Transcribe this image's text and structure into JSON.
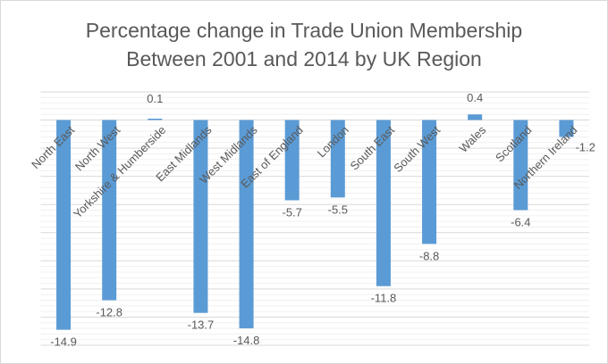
{
  "chart_data": {
    "type": "bar",
    "title": [
      "Percentage change in Trade Union Membership",
      "Between 2001 and 2014 by UK Region"
    ],
    "xlabel": "",
    "ylabel": "",
    "categories": [
      "North East",
      "North West",
      "Yorkshire & Humberside",
      "East Midlands",
      "West Midlands",
      "East of England",
      "London",
      "South East",
      "South West",
      "Wales",
      "Scotland",
      "Northern Ireland"
    ],
    "values": [
      -14.9,
      -12.8,
      0.1,
      -13.7,
      -14.8,
      -5.7,
      -5.5,
      -11.8,
      -8.8,
      0.4,
      -6.4,
      -1.2
    ],
    "data_labels": [
      "-14.9",
      "-12.8",
      "0.1",
      "-13.7",
      "-14.8",
      "-5.7",
      "-5.5",
      "-11.8",
      "-8.8",
      "0.4",
      "-6.4",
      "-1.2"
    ],
    "ylim": [
      -16,
      2
    ],
    "grid": true,
    "legend": "none",
    "bar_color": "#5B9BD5"
  }
}
